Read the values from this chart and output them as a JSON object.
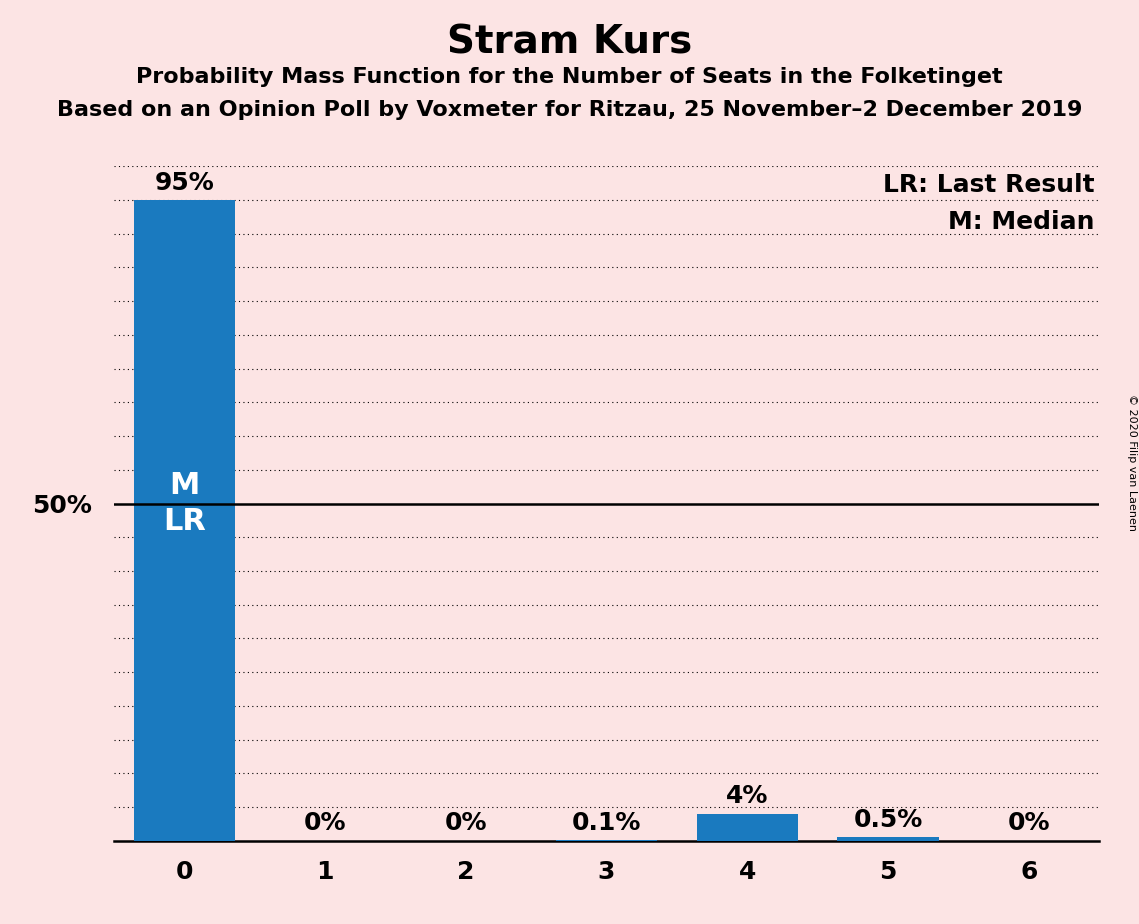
{
  "title": "Stram Kurs",
  "subtitle1": "Probability Mass Function for the Number of Seats in the Folketinget",
  "subtitle2": "Based on an Opinion Poll by Voxmeter for Ritzau, 25 November–2 December 2019",
  "copyright": "© 2020 Filip van Laenen",
  "categories": [
    0,
    1,
    2,
    3,
    4,
    5,
    6
  ],
  "values": [
    0.95,
    0.0,
    0.0,
    0.001,
    0.04,
    0.005,
    0.0
  ],
  "bar_labels": [
    "95%",
    "0%",
    "0%",
    "0.1%",
    "4%",
    "0.5%",
    "0%"
  ],
  "bar_color": "#1a7abf",
  "background_color": "#fce4e4",
  "ylabel_50": "50%",
  "solid_line_y": 0.5,
  "legend_lr": "LR: Last Result",
  "legend_m": "M: Median",
  "title_fontsize": 28,
  "subtitle_fontsize": 16,
  "label_fontsize": 18,
  "tick_fontsize": 18,
  "bar_label_fontsize": 18,
  "ylim": [
    0,
    1.0
  ],
  "xlim": [
    -0.5,
    6.5
  ],
  "m_lr_fontsize": 22
}
